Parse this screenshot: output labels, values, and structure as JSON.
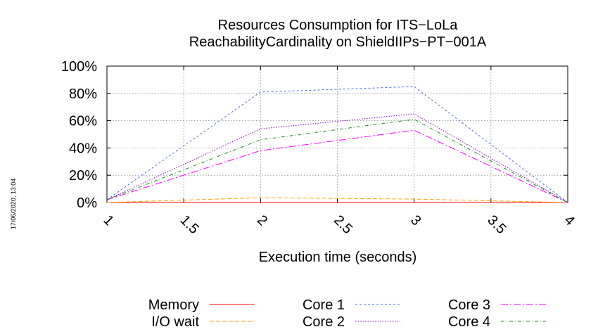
{
  "chart_data": {
    "type": "line",
    "title_line1": "Resources Consumption for ITS−LoLa",
    "title_line2": "ReachabilityCardinality on ShieldIIPs−PT−001A",
    "xlabel": "Execution time (seconds)",
    "ylabel": "",
    "xlim": [
      1,
      4
    ],
    "ylim": [
      0,
      100
    ],
    "x_ticks": [
      "1",
      "1.5",
      "2",
      "2.5",
      "3",
      "3.5",
      "4"
    ],
    "y_ticks": [
      "0%",
      "20%",
      "40%",
      "60%",
      "80%",
      "100%"
    ],
    "grid": true,
    "legend_position": "bottom",
    "timestamp": "17/06/2020, 13:04",
    "series": [
      {
        "name": "Memory",
        "color": "#ff0000",
        "dash": "",
        "x": [
          1,
          2,
          3,
          4
        ],
        "y": [
          0,
          0,
          0,
          0
        ]
      },
      {
        "name": "I/O wait",
        "color": "#ffa500",
        "dash": "6 3",
        "x": [
          1,
          2,
          3,
          4
        ],
        "y": [
          0,
          3.5,
          2.5,
          0
        ]
      },
      {
        "name": "Core 1",
        "color": "#4a6fe0",
        "dash": "3 3",
        "x": [
          1,
          2,
          3,
          4
        ],
        "y": [
          2,
          81,
          85,
          0
        ]
      },
      {
        "name": "Core 2",
        "color": "#9400d3",
        "dash": "1.5 2",
        "x": [
          1,
          2,
          3,
          4
        ],
        "y": [
          2,
          54,
          65,
          0
        ]
      },
      {
        "name": "Core 3",
        "color": "#ff00ff",
        "dash": "10 3 2 3",
        "x": [
          1,
          2,
          3,
          4
        ],
        "y": [
          2,
          38,
          53,
          0
        ]
      },
      {
        "name": "Core 4",
        "color": "#228b22",
        "dash": "5 3 1 3",
        "x": [
          1,
          2,
          3,
          4
        ],
        "y": [
          2,
          46,
          61,
          0
        ]
      }
    ]
  }
}
